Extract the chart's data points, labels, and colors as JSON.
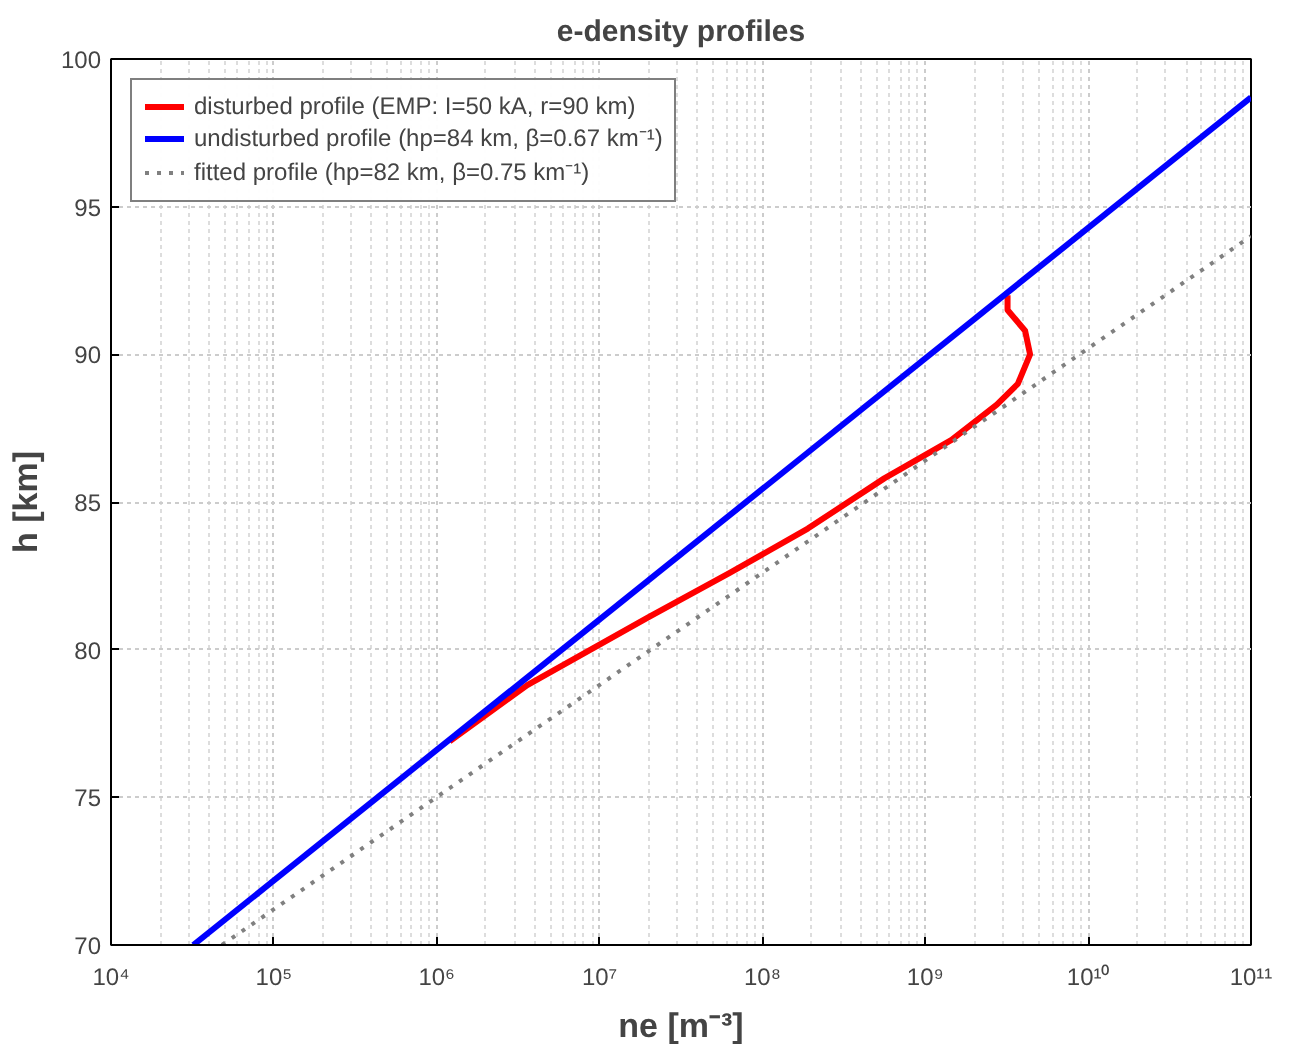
{
  "chart_data": {
    "type": "line",
    "title": "e-density profiles",
    "xlabel": "ne [m⁻³]",
    "ylabel": "h [km]",
    "log": "x",
    "grid": true,
    "legend": "top left",
    "marker": "none",
    "xlim": [
      10000,
      100000000000
    ],
    "ylim": [
      70,
      100
    ],
    "xticks": [
      {
        "value": 10000,
        "label": "10⁴"
      },
      {
        "value": 100000,
        "label": "10⁵"
      },
      {
        "value": 1000000,
        "label": "10⁶"
      },
      {
        "value": 10000000,
        "label": "10⁷"
      },
      {
        "value": 100000000,
        "label": "10⁸"
      },
      {
        "value": 1000000000,
        "label": "10⁹"
      },
      {
        "value": 10000000000,
        "label": "10¹⁰"
      },
      {
        "value": 100000000000,
        "label": "10¹¹"
      }
    ],
    "yticks": [
      70,
      75,
      80,
      85,
      90,
      95,
      100
    ],
    "series": [
      {
        "name": "disturbed profile (EMP: I=50 kA, r=90 km)",
        "color": "#ff0000",
        "line_style": "solid",
        "x": [
          1200000,
          3600000,
          20000000,
          63000000,
          190000000,
          560000000,
          1450000000,
          2750000000,
          3700000000,
          4400000000,
          4100000000,
          3200000000,
          3200000000
        ],
        "values": [
          76.9,
          78.8,
          81.1,
          82.6,
          84.1,
          85.8,
          87.1,
          88.3,
          89.0,
          90.0,
          90.8,
          91.5,
          92.0
        ]
      },
      {
        "name": "undisturbed profile (hp=84 km, β=0.67 km⁻¹)",
        "color": "#0000ff",
        "line_style": "solid",
        "x": [
          32000,
          100000000000
        ],
        "values": [
          70,
          98.7
        ]
      },
      {
        "name": "fitted profile (hp=82 km, β=0.75 km⁻¹)",
        "color": "#808080",
        "line_style": "dotted",
        "x": [
          48000,
          100000000000
        ],
        "values": [
          70,
          94.0
        ]
      }
    ]
  }
}
